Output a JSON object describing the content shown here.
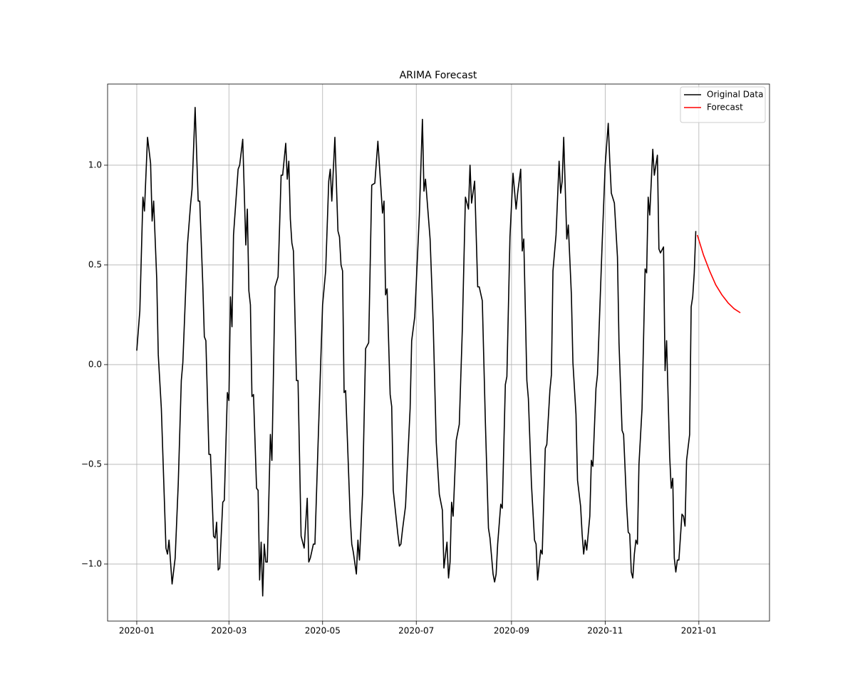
{
  "chart_data": {
    "type": "line",
    "title": "ARIMA Forecast",
    "xlim": [
      "2019-12-13",
      "2021-02-16"
    ],
    "xticks": [
      {
        "value": "2020-01-01",
        "label": "2020-01"
      },
      {
        "value": "2020-03-01",
        "label": "2020-03"
      },
      {
        "value": "2020-05-01",
        "label": "2020-05"
      },
      {
        "value": "2020-07-01",
        "label": "2020-07"
      },
      {
        "value": "2020-09-01",
        "label": "2020-09"
      },
      {
        "value": "2020-11-01",
        "label": "2020-11"
      },
      {
        "value": "2021-01-01",
        "label": "2021-01"
      }
    ],
    "ylim": [
      -1.286,
      1.407
    ],
    "yticks": [
      {
        "value": -1,
        "label": "−1.0"
      },
      {
        "value": -0.5,
        "label": "−0.5"
      },
      {
        "value": 0,
        "label": "0.0"
      },
      {
        "value": 0.5,
        "label": "0.5"
      },
      {
        "value": 1,
        "label": "1.0"
      }
    ],
    "grid": true,
    "legend": "upper right",
    "series": [
      {
        "name": "Original Data",
        "color": "#000000",
        "x": [
          "2020-01-01",
          "2020-01-03",
          "2020-01-05",
          "2020-01-06",
          "2020-01-08",
          "2020-01-10",
          "2020-01-11",
          "2020-01-12",
          "2020-01-14",
          "2020-01-15",
          "2020-01-17",
          "2020-01-20",
          "2020-01-21",
          "2020-01-22",
          "2020-01-24",
          "2020-01-26",
          "2020-01-28",
          "2020-01-30",
          "2020-01-31",
          "2020-02-03",
          "2020-02-05",
          "2020-02-06",
          "2020-02-08",
          "2020-02-10",
          "2020-02-11",
          "2020-02-13",
          "2020-02-14",
          "2020-02-15",
          "2020-02-17",
          "2020-02-18",
          "2020-02-20",
          "2020-02-21",
          "2020-02-22",
          "2020-02-23",
          "2020-02-24",
          "2020-02-26",
          "2020-02-27",
          "2020-02-29",
          "2020-03-01",
          "2020-03-02",
          "2020-03-03",
          "2020-03-04",
          "2020-03-07",
          "2020-03-08",
          "2020-03-10",
          "2020-03-12",
          "2020-03-13",
          "2020-03-14",
          "2020-03-15",
          "2020-03-16",
          "2020-03-17",
          "2020-03-19",
          "2020-03-20",
          "2020-03-21",
          "2020-03-22",
          "2020-03-23",
          "2020-03-24",
          "2020-03-25",
          "2020-03-26",
          "2020-03-28",
          "2020-03-29",
          "2020-03-31",
          "2020-04-02",
          "2020-04-04",
          "2020-04-05",
          "2020-04-07",
          "2020-04-08",
          "2020-04-09",
          "2020-04-10",
          "2020-04-11",
          "2020-04-12",
          "2020-04-14",
          "2020-04-15",
          "2020-04-17",
          "2020-04-19",
          "2020-04-21",
          "2020-04-22",
          "2020-04-23",
          "2020-04-25",
          "2020-04-26",
          "2020-04-28",
          "2020-05-01",
          "2020-05-03",
          "2020-05-05",
          "2020-05-06",
          "2020-05-07",
          "2020-05-09",
          "2020-05-11",
          "2020-05-12",
          "2020-05-13",
          "2020-05-14",
          "2020-05-15",
          "2020-05-16",
          "2020-05-19",
          "2020-05-20",
          "2020-05-21",
          "2020-05-23",
          "2020-05-24",
          "2020-05-25",
          "2020-05-27",
          "2020-05-29",
          "2020-05-31",
          "2020-06-02",
          "2020-06-04",
          "2020-06-06",
          "2020-06-09",
          "2020-06-10",
          "2020-06-11",
          "2020-06-12",
          "2020-06-14",
          "2020-06-15",
          "2020-06-16",
          "2020-06-19",
          "2020-06-20",
          "2020-06-21",
          "2020-06-22",
          "2020-06-24",
          "2020-06-27",
          "2020-06-28",
          "2020-06-30",
          "2020-07-03",
          "2020-07-05",
          "2020-07-06",
          "2020-07-07",
          "2020-07-10",
          "2020-07-12",
          "2020-07-14",
          "2020-07-16",
          "2020-07-18",
          "2020-07-19",
          "2020-07-21",
          "2020-07-22",
          "2020-07-23",
          "2020-07-24",
          "2020-07-25",
          "2020-07-27",
          "2020-07-29",
          "2020-07-31",
          "2020-08-02",
          "2020-08-04",
          "2020-08-05",
          "2020-08-06",
          "2020-08-08",
          "2020-08-10",
          "2020-08-11",
          "2020-08-13",
          "2020-08-15",
          "2020-08-17",
          "2020-08-18",
          "2020-08-20",
          "2020-08-21",
          "2020-08-22",
          "2020-08-23",
          "2020-08-25",
          "2020-08-26",
          "2020-08-28",
          "2020-08-29",
          "2020-08-31",
          "2020-09-02",
          "2020-09-04",
          "2020-09-05",
          "2020-09-07",
          "2020-09-08",
          "2020-09-09",
          "2020-09-11",
          "2020-09-12",
          "2020-09-14",
          "2020-09-16",
          "2020-09-17",
          "2020-09-18",
          "2020-09-20",
          "2020-09-21",
          "2020-09-23",
          "2020-09-24",
          "2020-09-26",
          "2020-09-27",
          "2020-09-28",
          "2020-09-30",
          "2020-10-02",
          "2020-10-03",
          "2020-10-04",
          "2020-10-05",
          "2020-10-07",
          "2020-10-08",
          "2020-10-10",
          "2020-10-11",
          "2020-10-13",
          "2020-10-14",
          "2020-10-16",
          "2020-10-17",
          "2020-10-18",
          "2020-10-19",
          "2020-10-20",
          "2020-10-22",
          "2020-10-23",
          "2020-10-24",
          "2020-10-26",
          "2020-10-27",
          "2020-10-30",
          "2020-11-01",
          "2020-11-03",
          "2020-11-04",
          "2020-11-05",
          "2020-11-07",
          "2020-11-09",
          "2020-11-10",
          "2020-11-12",
          "2020-11-13",
          "2020-11-15",
          "2020-11-16",
          "2020-11-17",
          "2020-11-18",
          "2020-11-19",
          "2020-11-20",
          "2020-11-21",
          "2020-11-22",
          "2020-11-23",
          "2020-11-25",
          "2020-11-27",
          "2020-11-28",
          "2020-11-29",
          "2020-11-30",
          "2020-12-02",
          "2020-12-03",
          "2020-12-05",
          "2020-12-06",
          "2020-12-07",
          "2020-12-09",
          "2020-12-10",
          "2020-12-11",
          "2020-12-13",
          "2020-12-14",
          "2020-12-15",
          "2020-12-16",
          "2020-12-17",
          "2020-12-18",
          "2020-12-19",
          "2020-12-21",
          "2020-12-22",
          "2020-12-23",
          "2020-12-24",
          "2020-12-26",
          "2020-12-27",
          "2020-12-28",
          "2020-12-29",
          "2020-12-30"
        ],
        "values": [
          0.07,
          0.27,
          0.84,
          0.77,
          1.14,
          1.01,
          0.72,
          0.82,
          0.43,
          0.05,
          -0.22,
          -0.92,
          -0.95,
          -0.88,
          -1.1,
          -0.97,
          -0.6,
          -0.08,
          0.01,
          0.6,
          0.8,
          0.88,
          1.29,
          0.82,
          0.82,
          0.4,
          0.14,
          0.12,
          -0.45,
          -0.45,
          -0.86,
          -0.87,
          -0.79,
          -1.03,
          -1.02,
          -0.69,
          -0.68,
          -0.14,
          -0.18,
          0.34,
          0.19,
          0.65,
          0.98,
          1.0,
          1.13,
          0.6,
          0.78,
          0.37,
          0.3,
          -0.16,
          -0.15,
          -0.62,
          -0.63,
          -1.08,
          -0.89,
          -1.16,
          -0.9,
          -0.99,
          -0.99,
          -0.35,
          -0.48,
          0.39,
          0.44,
          0.95,
          0.95,
          1.11,
          0.93,
          1.02,
          0.73,
          0.61,
          0.57,
          -0.08,
          -0.08,
          -0.86,
          -0.92,
          -0.67,
          -0.99,
          -0.97,
          -0.9,
          -0.9,
          -0.41,
          0.3,
          0.47,
          0.92,
          0.98,
          0.82,
          1.14,
          0.67,
          0.64,
          0.5,
          0.47,
          -0.14,
          -0.13,
          -0.77,
          -0.9,
          -0.94,
          -1.05,
          -0.88,
          -0.98,
          -0.65,
          0.08,
          0.11,
          0.9,
          0.91,
          1.12,
          0.76,
          0.82,
          0.35,
          0.38,
          -0.15,
          -0.21,
          -0.63,
          -0.85,
          -0.91,
          -0.9,
          -0.83,
          -0.71,
          -0.22,
          0.12,
          0.24,
          0.75,
          1.23,
          0.87,
          0.93,
          0.63,
          0.21,
          -0.39,
          -0.65,
          -0.73,
          -1.02,
          -0.89,
          -1.07,
          -0.99,
          -0.69,
          -0.76,
          -0.38,
          -0.3,
          0.18,
          0.84,
          0.78,
          1.0,
          0.81,
          0.92,
          0.39,
          0.39,
          0.32,
          -0.29,
          -0.82,
          -0.87,
          -1.05,
          -1.09,
          -1.05,
          -0.9,
          -0.7,
          -0.72,
          -0.1,
          -0.06,
          0.64,
          0.96,
          0.78,
          0.86,
          0.98,
          0.57,
          0.63,
          -0.08,
          -0.17,
          -0.6,
          -0.88,
          -0.9,
          -1.08,
          -0.93,
          -0.95,
          -0.42,
          -0.4,
          -0.13,
          -0.05,
          0.47,
          0.65,
          1.02,
          0.86,
          0.92,
          1.14,
          0.63,
          0.7,
          0.35,
          0.01,
          -0.25,
          -0.58,
          -0.71,
          -0.85,
          -0.95,
          -0.88,
          -0.93,
          -0.76,
          -0.48,
          -0.51,
          -0.12,
          -0.05,
          0.6,
          1.0,
          1.21,
          1.02,
          0.86,
          0.81,
          0.54,
          0.11,
          -0.33,
          -0.35,
          -0.71,
          -0.84,
          -0.85,
          -1.04,
          -1.07,
          -0.95,
          -0.88,
          -0.9,
          -0.5,
          -0.22,
          0.48,
          0.46,
          0.84,
          0.75,
          1.08,
          0.95,
          1.05,
          0.58,
          0.56,
          0.59,
          -0.03,
          0.12,
          -0.46,
          -0.62,
          -0.57,
          -0.97,
          -1.04,
          -0.98,
          -0.98,
          -0.75,
          -0.76,
          -0.81,
          -0.48,
          -0.35,
          0.29,
          0.34,
          0.46,
          0.67
        ]
      },
      {
        "name": "Forecast",
        "color": "#ff0000",
        "x": [
          "2020-12-31",
          "2021-01-04",
          "2021-01-08",
          "2021-01-12",
          "2021-01-16",
          "2021-01-20",
          "2021-01-24",
          "2021-01-28"
        ],
        "values": [
          0.65,
          0.55,
          0.47,
          0.4,
          0.35,
          0.31,
          0.28,
          0.26
        ]
      }
    ]
  }
}
